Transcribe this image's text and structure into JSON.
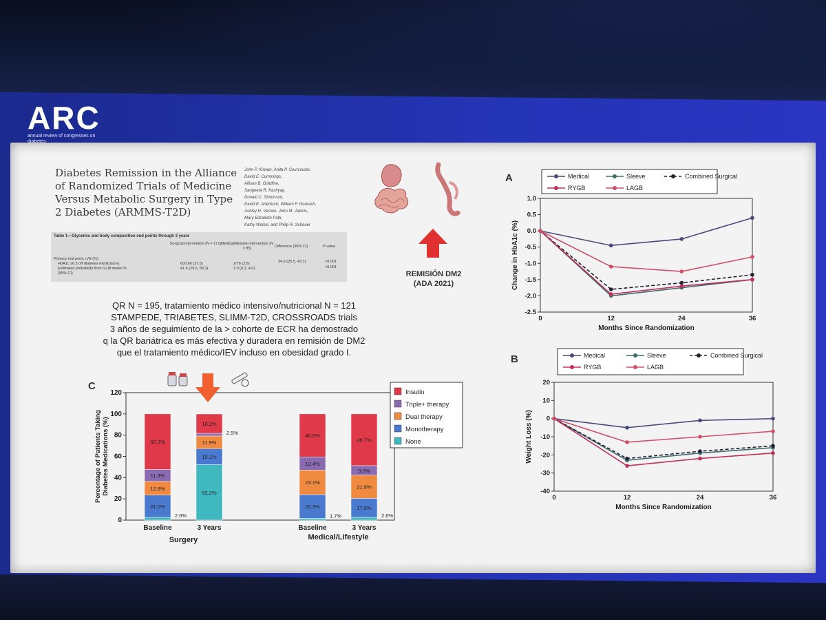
{
  "logo": {
    "main": "ARC",
    "sub": "annual review of congresses on diabetes"
  },
  "paper": {
    "title": "Diabetes Remission in the Alliance of Randomized Trials of Medicine Versus Metabolic Surgery in Type 2 Diabetes (ARMMS-T2D)",
    "authors": [
      "John P. Kirwan, Anita P. Courcoulas,",
      "David E. Cummings,",
      "Allison B. Goldfine,",
      "Sangeeta R. Kashyap,",
      "Donald C. Simonson,",
      "David E. Arterburn, William F. Gourash,",
      "Ashley H. Vernon, John M. Jakicic,",
      "Mary Elizabeth Patti,",
      "Kathy Wolski, and Philip R. Schauer"
    ]
  },
  "table": {
    "header": "Table 1—Glycemic and body composition end points through 3 years",
    "col_surgical": "Surgical intervention (N = 171)",
    "col_medical": "Medical/lifestyle intervention (N = 85)",
    "col_diff": "Difference (95% CI)",
    "col_p": "P value",
    "row1": "Primary end point, n/N (%)",
    "row2": "HbA1c ≤6.5 off diabetes medications",
    "row3": "Estimated probability from GLM model %",
    "row4": "(95% CI)",
    "r2_surg": "60/160 (37.5)",
    "r2_med": "2/76 (2.6)",
    "r2_diff": "34.9 (26.5, 43.1)",
    "r2_p": "<0.001",
    "r3_surg": "41.6 (29.6, 58.3)",
    "r3_med": "1.0 (0.2, 4.0)",
    "r3_p": "<0.001"
  },
  "remision": {
    "line1": "REMISIÓN DM2",
    "line2": "(ADA 2021)"
  },
  "body_text": [
    "QR N = 195, tratamiento médico intensivo/nutricional N = 121",
    "STAMPEDE, TRIABETES, SLIMM-T2D, CROSSROADS trials",
    "3 años de seguimiento de la > cohorte de ECR ha demostrado",
    "q la QR bariátrica es más efectiva y duradera en remisión de DM2",
    "que el tratamiento médico/IEV incluso en obesidad grado I."
  ],
  "colors": {
    "medical": "#4a4a7a",
    "sleeve": "#3f6b6b",
    "combined": "#222233",
    "rygb": "#c0305a",
    "lagb": "#d0506a",
    "insulin": "#e03a4a",
    "triple": "#8a6ab0",
    "dual": "#f08a40",
    "mono": "#4a7ad0",
    "none": "#40b8c0",
    "arrow": "#e04040"
  },
  "chart_data": [
    {
      "type": "line",
      "panel": "A",
      "xlabel": "Months Since Randomization",
      "ylabel": "Change in HbA1c (%)",
      "x": [
        0,
        12,
        24,
        36
      ],
      "xticks": [
        "0",
        "12",
        "24",
        "36"
      ],
      "ylim": [
        -2.5,
        1.0
      ],
      "yticks": [
        "1.0",
        "0.5",
        "0.0",
        "-0.5",
        "-1.0",
        "-1.5",
        "-2.0",
        "-2.5"
      ],
      "legend": [
        "Medical",
        "Sleeve",
        "Combined Surgical",
        "RYGB",
        "LAGB"
      ],
      "series": [
        {
          "name": "Medical",
          "values": [
            0,
            -0.45,
            -0.25,
            0.4
          ]
        },
        {
          "name": "Sleeve",
          "values": [
            0,
            -2.0,
            -1.75,
            -1.5
          ]
        },
        {
          "name": "Combined Surgical",
          "values": [
            0,
            -1.8,
            -1.6,
            -1.35
          ]
        },
        {
          "name": "RYGB",
          "values": [
            0,
            -1.95,
            -1.7,
            -1.5
          ]
        },
        {
          "name": "LAGB",
          "values": [
            0,
            -1.1,
            -1.25,
            -0.8
          ]
        }
      ]
    },
    {
      "type": "line",
      "panel": "B",
      "xlabel": "Months Since Randomization",
      "ylabel": "Weight Loss (%)",
      "x": [
        0,
        12,
        24,
        36
      ],
      "xticks": [
        "0",
        "12",
        "24",
        "36"
      ],
      "ylim": [
        -40,
        20
      ],
      "yticks": [
        "20",
        "10",
        "0",
        "-10",
        "-20",
        "-30",
        "-40"
      ],
      "legend": [
        "Medical",
        "Sleeve",
        "Combined Surgical",
        "RYGB",
        "LAGB"
      ],
      "series": [
        {
          "name": "Medical",
          "values": [
            0,
            -5,
            -1,
            0
          ]
        },
        {
          "name": "Sleeve",
          "values": [
            0,
            -23,
            -19,
            -16
          ]
        },
        {
          "name": "Combined Surgical",
          "values": [
            0,
            -22,
            -18,
            -15
          ]
        },
        {
          "name": "RYGB",
          "values": [
            0,
            -26,
            -22,
            -19
          ]
        },
        {
          "name": "LAGB",
          "values": [
            0,
            -13,
            -10,
            -7
          ]
        }
      ]
    },
    {
      "type": "bar",
      "panel": "C",
      "stacked": true,
      "ylabel": "Percentage of Patients Taking Diabetes Medications (%)",
      "ylim": [
        0,
        120
      ],
      "yticks": [
        "0",
        "20",
        "40",
        "60",
        "80",
        "100",
        "120"
      ],
      "groups": [
        "Surgery",
        "Medical/Lifestyle"
      ],
      "categories": [
        "Baseline",
        "3 Years",
        "Baseline",
        "3 Years"
      ],
      "legend": [
        "Insulin",
        "Triple+ therapy",
        "Dual therapy",
        "Monotherapy",
        "None"
      ],
      "series": [
        {
          "name": "None",
          "values": [
            2.6,
            52.2,
            1.7,
            2.6
          ]
        },
        {
          "name": "Monotherapy",
          "values": [
            21.0,
            15.1,
            22.3,
            17.9
          ]
        },
        {
          "name": "Dual therapy",
          "values": [
            12.8,
            11.9,
            23.1,
            21.8
          ]
        },
        {
          "name": "Triple+ therapy",
          "values": [
            11.3,
            2.5,
            12.4,
            9.0
          ]
        },
        {
          "name": "Insulin",
          "values": [
            52.3,
            18.2,
            40.5,
            48.7
          ]
        }
      ],
      "labels": [
        [
          "2.6%",
          "21.0%",
          "12.8%",
          "11.3%",
          "52.3%"
        ],
        [
          "52.2%",
          "15.1%",
          "11.9%",
          "2.5%",
          "18.2%"
        ],
        [
          "1.7%",
          "22.3%",
          "23.1%",
          "12.4%",
          "40.5%"
        ],
        [
          "2.6%",
          "17.9%",
          "21.8%",
          "9.0%",
          "48.7%"
        ]
      ]
    }
  ]
}
